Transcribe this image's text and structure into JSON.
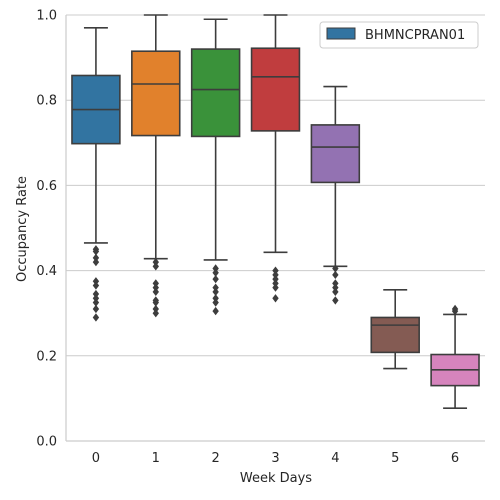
{
  "chart_data": {
    "type": "box",
    "title": "",
    "xlabel": "Week Days",
    "ylabel": "Occupancy Rate",
    "ylim": [
      0,
      1.0
    ],
    "yticks": [
      "0.0",
      "0.2",
      "0.4",
      "0.6",
      "0.8",
      "1.0"
    ],
    "grid": "horizontal",
    "legend": {
      "position": "top-right",
      "entries": [
        "BHMNCPRAN01"
      ]
    },
    "categories": [
      "0",
      "1",
      "2",
      "3",
      "4",
      "5",
      "6"
    ],
    "boxes": [
      {
        "label": "0",
        "color": "#3274a1",
        "whisker_low": 0.465,
        "q1": 0.698,
        "median": 0.778,
        "q3": 0.858,
        "whisker_high": 0.97,
        "outliers": [
          0.45,
          0.445,
          0.43,
          0.42,
          0.375,
          0.365,
          0.345,
          0.335,
          0.325,
          0.31,
          0.29
        ]
      },
      {
        "label": "1",
        "color": "#e1812c",
        "whisker_low": 0.428,
        "q1": 0.717,
        "median": 0.838,
        "q3": 0.915,
        "whisker_high": 1.0,
        "outliers": [
          0.42,
          0.41,
          0.37,
          0.36,
          0.35,
          0.33,
          0.325,
          0.31,
          0.3
        ]
      },
      {
        "label": "2",
        "color": "#3a923a",
        "whisker_low": 0.425,
        "q1": 0.715,
        "median": 0.825,
        "q3": 0.92,
        "whisker_high": 0.99,
        "outliers": [
          0.405,
          0.395,
          0.38,
          0.36,
          0.35,
          0.335,
          0.325,
          0.305
        ]
      },
      {
        "label": "3",
        "color": "#c03d3e",
        "whisker_low": 0.443,
        "q1": 0.728,
        "median": 0.855,
        "q3": 0.922,
        "whisker_high": 1.0,
        "outliers": [
          0.4,
          0.39,
          0.38,
          0.37,
          0.36,
          0.335
        ]
      },
      {
        "label": "4",
        "color": "#9372b2",
        "whisker_low": 0.41,
        "q1": 0.607,
        "median": 0.69,
        "q3": 0.742,
        "whisker_high": 0.832,
        "outliers": [
          0.405,
          0.39,
          0.37,
          0.36,
          0.35,
          0.33
        ]
      },
      {
        "label": "5",
        "color": "#845b53",
        "whisker_low": 0.17,
        "q1": 0.208,
        "median": 0.272,
        "q3": 0.29,
        "whisker_high": 0.355,
        "outliers": []
      },
      {
        "label": "6",
        "color": "#d684bd",
        "whisker_low": 0.077,
        "q1": 0.13,
        "median": 0.167,
        "q3": 0.203,
        "whisker_high": 0.297,
        "outliers": [
          0.31,
          0.305
        ]
      }
    ]
  }
}
